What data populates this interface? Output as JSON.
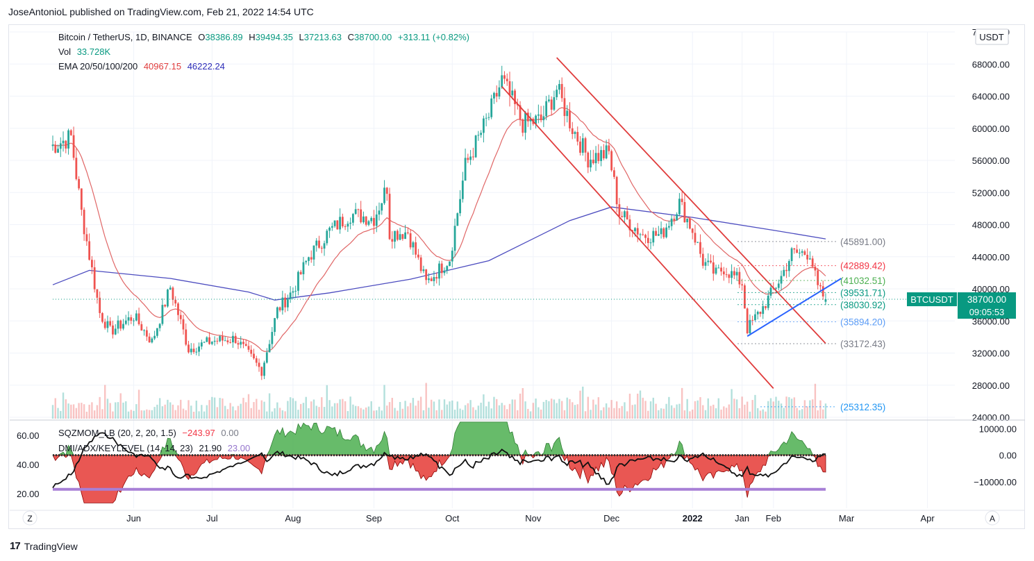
{
  "header": {
    "publish_line": "JoseAntonioL published on TradingView.com, Feb 21, 2022 14:54 UTC",
    "currency_badge": "USDT"
  },
  "legend": {
    "symbol": "Bitcoin / TetherUS, 1D, BINANCE",
    "o_label": "O",
    "o_value": "38386.89",
    "h_label": "H",
    "h_value": "39494.35",
    "l_label": "L",
    "l_value": "37213.63",
    "c_label": "C",
    "c_value": "38700.00",
    "change": "+313.11 (+0.82%)",
    "vol_label": "Vol",
    "vol_value": "33.728K",
    "ema_label": "EMA 20/50/100/200",
    "ema_value1": "40967.15",
    "ema_value2": "46222.24"
  },
  "indicator_legend": {
    "sqz_label": "SQZMOM_LB (20, 2, 20, 1.5)",
    "sqz_value1": "−243.97",
    "sqz_value2": "0.00",
    "dmi_label": "DMI/ADX/KEYLEVEL (14, 14, 23)",
    "dmi_value1": "21.90",
    "dmi_value2": "23.00"
  },
  "price_axis": [
    "72000.00",
    "68000.00",
    "64000.00",
    "60000.00",
    "56000.00",
    "52000.00",
    "48000.00",
    "44000.00",
    "40000.00",
    "36000.00",
    "32000.00",
    "28000.00",
    "24000.00"
  ],
  "indicator_axis_right": [
    "10000.00",
    "0.00",
    "−10000.00"
  ],
  "indicator_axis_left": [
    "60.00",
    "40.00",
    "20.00"
  ],
  "time_axis": [
    "Jun",
    "Jul",
    "Aug",
    "Sep",
    "Oct",
    "Nov",
    "Dec",
    "2022",
    "Jan",
    "Feb",
    "Mar",
    "Apr"
  ],
  "corner_labels": {
    "left": "Z",
    "right": "A"
  },
  "levels": [
    {
      "label": "(45891.00)",
      "price": 45891,
      "color": "#787b86"
    },
    {
      "label": "(42889.42)",
      "price": 42889.42,
      "color": "#f23645"
    },
    {
      "label": "(41032.51)",
      "price": 41032.51,
      "color": "#4caf50"
    },
    {
      "label": "(39531.71)",
      "price": 39531.71,
      "color": "#089981"
    },
    {
      "label": "(38030.92)",
      "price": 38030.92,
      "color": "#089981"
    },
    {
      "label": "(35894.20)",
      "price": 35894.2,
      "color": "#5b9cf6"
    },
    {
      "label": "(33172.43)",
      "price": 33172.43,
      "color": "#787b86"
    },
    {
      "label": "(25312.35)",
      "price": 25312.35,
      "color": "#2196f3"
    }
  ],
  "price_tag": {
    "symbol": "BTCUSDT",
    "price": "38700.00",
    "countdown": "09:05:53"
  },
  "footer": {
    "brand": "TradingView"
  },
  "colors": {
    "up": "#26a69a",
    "down": "#ef5350",
    "ema20": "#e06666",
    "ema200": "#4b4bbf",
    "channel": "#e03c3c",
    "trendline": "#2962ff",
    "keylevel": "#a77fd6"
  },
  "chart_data": {
    "type": "candlestick",
    "symbol": "BTCUSDT",
    "interval": "1D",
    "ylim": [
      24000,
      72000
    ],
    "close_path": [
      {
        "date": "2021-05-01",
        "close": 57800
      },
      {
        "date": "2021-05-08",
        "close": 58900
      },
      {
        "date": "2021-05-12",
        "close": 49500
      },
      {
        "date": "2021-05-19",
        "close": 37000
      },
      {
        "date": "2021-05-23",
        "close": 34700
      },
      {
        "date": "2021-06-01",
        "close": 36600
      },
      {
        "date": "2021-06-08",
        "close": 33400
      },
      {
        "date": "2021-06-15",
        "close": 40200
      },
      {
        "date": "2021-06-22",
        "close": 32500
      },
      {
        "date": "2021-07-01",
        "close": 33500
      },
      {
        "date": "2021-07-10",
        "close": 33800
      },
      {
        "date": "2021-07-20",
        "close": 29800
      },
      {
        "date": "2021-07-26",
        "close": 37300
      },
      {
        "date": "2021-08-01",
        "close": 39800
      },
      {
        "date": "2021-08-07",
        "close": 44000
      },
      {
        "date": "2021-08-15",
        "close": 47200
      },
      {
        "date": "2021-08-23",
        "close": 49300
      },
      {
        "date": "2021-09-01",
        "close": 48800
      },
      {
        "date": "2021-09-06",
        "close": 52700
      },
      {
        "date": "2021-09-07",
        "close": 46900
      },
      {
        "date": "2021-09-14",
        "close": 47100
      },
      {
        "date": "2021-09-21",
        "close": 40700
      },
      {
        "date": "2021-09-30",
        "close": 43800
      },
      {
        "date": "2021-10-06",
        "close": 55300
      },
      {
        "date": "2021-10-15",
        "close": 61500
      },
      {
        "date": "2021-10-20",
        "close": 66000
      },
      {
        "date": "2021-10-28",
        "close": 60600
      },
      {
        "date": "2021-11-04",
        "close": 61000
      },
      {
        "date": "2021-11-10",
        "close": 64900
      },
      {
        "date": "2021-11-16",
        "close": 60100
      },
      {
        "date": "2021-11-22",
        "close": 56300
      },
      {
        "date": "2021-11-30",
        "close": 56900
      },
      {
        "date": "2021-12-04",
        "close": 49400
      },
      {
        "date": "2021-12-13",
        "close": 46700
      },
      {
        "date": "2021-12-20",
        "close": 46700
      },
      {
        "date": "2021-12-27",
        "close": 50700
      },
      {
        "date": "2022-01-01",
        "close": 47300
      },
      {
        "date": "2022-01-05",
        "close": 43400
      },
      {
        "date": "2022-01-10",
        "close": 41800
      },
      {
        "date": "2022-01-13",
        "close": 42600
      },
      {
        "date": "2022-01-20",
        "close": 40700
      },
      {
        "date": "2022-01-22",
        "close": 35000
      },
      {
        "date": "2022-01-28",
        "close": 37700
      },
      {
        "date": "2022-02-04",
        "close": 41500
      },
      {
        "date": "2022-02-08",
        "close": 44400
      },
      {
        "date": "2022-02-15",
        "close": 44500
      },
      {
        "date": "2022-02-18",
        "close": 40000
      },
      {
        "date": "2022-02-21",
        "close": 38700
      }
    ],
    "ema200_path": [
      {
        "date": "2021-05-01",
        "value": 40500
      },
      {
        "date": "2021-05-15",
        "value": 42300
      },
      {
        "date": "2021-06-15",
        "value": 41300
      },
      {
        "date": "2021-07-15",
        "value": 39600
      },
      {
        "date": "2021-07-25",
        "value": 38600
      },
      {
        "date": "2021-08-15",
        "value": 39500
      },
      {
        "date": "2021-09-15",
        "value": 41200
      },
      {
        "date": "2021-10-15",
        "value": 43500
      },
      {
        "date": "2021-11-15",
        "value": 48500
      },
      {
        "date": "2021-12-01",
        "value": 50200
      },
      {
        "date": "2022-01-01",
        "value": 48900
      },
      {
        "date": "2022-02-01",
        "value": 47300
      },
      {
        "date": "2022-02-21",
        "value": 46222
      }
    ],
    "ema20_last": 40967.15,
    "channel_upper": [
      {
        "date": "2021-11-10",
        "price": 68800
      },
      {
        "date": "2022-02-21",
        "price": 33200
      }
    ],
    "channel_lower": [
      {
        "date": "2021-10-20",
        "price": 65200
      },
      {
        "date": "2022-02-01",
        "price": 27600
      }
    ],
    "trendline": [
      {
        "date": "2022-01-22",
        "price": 34100
      },
      {
        "date": "2022-02-27",
        "price": 41300
      }
    ],
    "indicators": {
      "sqzmom_ylim": [
        -20000,
        13000
      ],
      "dmi_ylim": [
        10,
        70
      ],
      "keylevel": 23
    }
  }
}
